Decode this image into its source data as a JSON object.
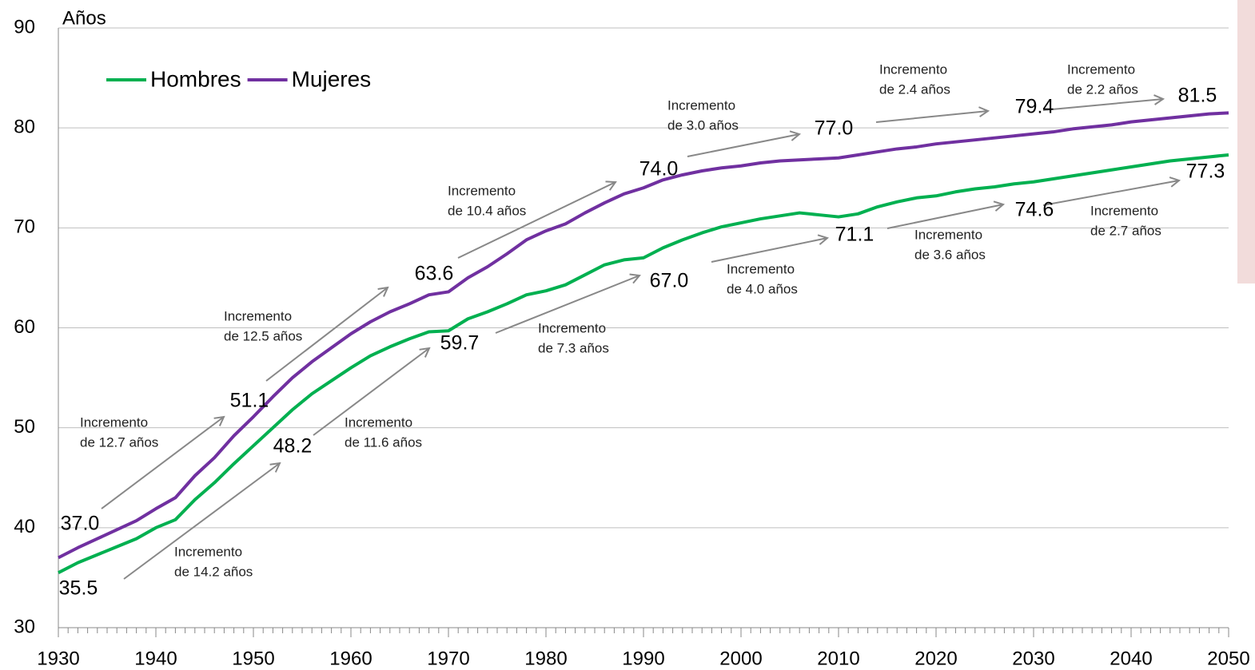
{
  "chart_data": {
    "type": "line",
    "y_label": "Años",
    "x": [
      1930,
      1932,
      1934,
      1936,
      1938,
      1940,
      1942,
      1944,
      1946,
      1948,
      1950,
      1952,
      1954,
      1956,
      1958,
      1960,
      1962,
      1964,
      1966,
      1968,
      1970,
      1972,
      1974,
      1976,
      1978,
      1980,
      1982,
      1984,
      1986,
      1988,
      1990,
      1992,
      1994,
      1996,
      1998,
      2000,
      2002,
      2004,
      2006,
      2008,
      2010,
      2012,
      2014,
      2016,
      2018,
      2020,
      2022,
      2024,
      2026,
      2028,
      2030,
      2032,
      2034,
      2036,
      2038,
      2040,
      2042,
      2044,
      2046,
      2048,
      2050
    ],
    "series": [
      {
        "name": "Hombres",
        "color": "#00b050",
        "values": [
          35.5,
          36.5,
          37.3,
          38.1,
          38.9,
          40.0,
          40.8,
          42.8,
          44.5,
          46.4,
          48.2,
          50.0,
          51.8,
          53.4,
          54.7,
          56.0,
          57.2,
          58.1,
          58.9,
          59.6,
          59.7,
          60.9,
          61.6,
          62.4,
          63.3,
          63.7,
          64.3,
          65.3,
          66.3,
          66.8,
          67.0,
          68.0,
          68.8,
          69.5,
          70.1,
          70.5,
          70.9,
          71.2,
          71.5,
          71.3,
          71.1,
          71.4,
          72.1,
          72.6,
          73.0,
          73.2,
          73.6,
          73.9,
          74.1,
          74.4,
          74.6,
          74.9,
          75.2,
          75.5,
          75.8,
          76.1,
          76.4,
          76.7,
          76.9,
          77.1,
          77.3
        ],
        "value_labels": [
          "35.5",
          null,
          null,
          null,
          null,
          null,
          null,
          null,
          null,
          null,
          "48.2",
          null,
          null,
          null,
          null,
          null,
          null,
          null,
          null,
          null,
          "59.7",
          null,
          null,
          null,
          null,
          null,
          null,
          null,
          null,
          null,
          "67.0",
          null,
          null,
          null,
          null,
          null,
          null,
          null,
          null,
          null,
          "71.1",
          null,
          null,
          null,
          null,
          null,
          null,
          null,
          null,
          null,
          "74.6",
          null,
          null,
          null,
          null,
          null,
          null,
          null,
          null,
          null,
          "77.3"
        ]
      },
      {
        "name": "Mujeres",
        "color": "#7030a0",
        "values": [
          37.0,
          38.0,
          38.9,
          39.8,
          40.7,
          41.9,
          43.0,
          45.2,
          47.0,
          49.2,
          51.1,
          53.1,
          55.0,
          56.6,
          58.0,
          59.4,
          60.6,
          61.6,
          62.4,
          63.3,
          63.6,
          65.0,
          66.1,
          67.4,
          68.8,
          69.7,
          70.4,
          71.5,
          72.5,
          73.4,
          74.0,
          74.8,
          75.3,
          75.7,
          76.0,
          76.2,
          76.5,
          76.7,
          76.8,
          76.9,
          77.0,
          77.3,
          77.6,
          77.9,
          78.1,
          78.4,
          78.6,
          78.8,
          79.0,
          79.2,
          79.4,
          79.6,
          79.9,
          80.1,
          80.3,
          80.6,
          80.8,
          81.0,
          81.2,
          81.4,
          81.5
        ],
        "value_labels": [
          "37.0",
          null,
          null,
          null,
          null,
          null,
          null,
          null,
          null,
          null,
          "51.1",
          null,
          null,
          null,
          null,
          null,
          null,
          null,
          null,
          null,
          "63.6",
          null,
          null,
          null,
          null,
          null,
          null,
          null,
          null,
          null,
          "74.0",
          null,
          null,
          null,
          null,
          null,
          null,
          null,
          null,
          null,
          "77.0",
          null,
          null,
          null,
          null,
          null,
          null,
          null,
          null,
          null,
          "79.4",
          null,
          null,
          null,
          null,
          null,
          null,
          null,
          null,
          null,
          "81.5"
        ]
      }
    ],
    "annotations": [
      [
        "Incremento",
        "de 12.7 años"
      ],
      [
        "Incremento",
        "de  12.5 años"
      ],
      [
        "Incremento",
        "de 10.4 años"
      ],
      [
        "Incremento",
        "de 3.0 años"
      ],
      [
        "Incremento",
        "de 2.4 años"
      ],
      [
        "Incremento",
        "de 2.2 años"
      ],
      [
        "Incremento",
        "de 14.2 años"
      ],
      [
        "Incremento",
        "de 11.6 años"
      ],
      [
        "Incremento",
        "de 7.3 años"
      ],
      [
        "Incremento",
        "de 4.0  años"
      ],
      [
        "Incremento",
        "de 3.6 años"
      ],
      [
        "Incremento",
        "de 2.7 años"
      ]
    ],
    "xlim": [
      1930,
      2050
    ],
    "xticks": [
      1930,
      1940,
      1950,
      1960,
      1970,
      1980,
      1990,
      2000,
      2010,
      2020,
      2030,
      2040,
      2050
    ],
    "ylim": [
      30,
      90
    ],
    "yticks": [
      30,
      40,
      50,
      60,
      70,
      80,
      90
    ],
    "grid": true,
    "legend": "top-left"
  }
}
